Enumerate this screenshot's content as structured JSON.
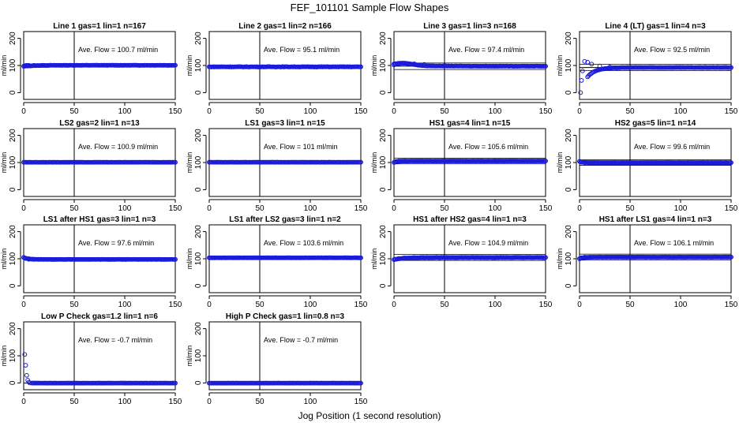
{
  "figure": {
    "title": "FEF_101101  Sample Flow Shapes",
    "xlabel": "Jog Position (1 second resolution)"
  },
  "chart_data": [
    {
      "type": "scatter",
      "title": "Line 1 gas=1 lin=1 n=167",
      "ylabel": "ml/min",
      "annotation": "Ave. Flow =  100.7  ml/min",
      "ave": 100.7,
      "xlim": [
        0,
        150
      ],
      "ylim": [
        -25,
        225
      ],
      "xticks": [
        0,
        50,
        100,
        150
      ],
      "yticks": [
        0,
        100,
        200
      ],
      "xticklabels": [
        "0",
        "50",
        "100",
        "150"
      ],
      "yticklabels": [
        "0",
        "100",
        "200"
      ],
      "vline_x": 50,
      "hlines": [],
      "point_color": "#1a1adc",
      "shape": {
        "start": 97,
        "bump": 0,
        "tau": 10,
        "base": 100.7,
        "noise": 1
      },
      "series": [
        {
          "x": [
            0,
            1,
            2,
            3,
            5,
            10,
            20,
            50,
            100,
            150
          ],
          "y": [
            97,
            99,
            100,
            100.5,
            100.7,
            100.7,
            100.7,
            100.7,
            100.7,
            100.7
          ]
        }
      ]
    },
    {
      "type": "scatter",
      "title": "Line 2 gas=1 lin=2 n=166",
      "ylabel": "ml/min",
      "annotation": "Ave. Flow =  95.1  ml/min",
      "ave": 95.1,
      "xlim": [
        0,
        150
      ],
      "ylim": [
        -25,
        225
      ],
      "xticks": [
        0,
        50,
        100,
        150
      ],
      "yticks": [
        0,
        100,
        200
      ],
      "xticklabels": [
        "0",
        "50",
        "100",
        "150"
      ],
      "yticklabels": [
        "0",
        "100",
        "200"
      ],
      "vline_x": 50,
      "hlines": [],
      "point_color": "#1a1adc",
      "shape": {
        "start": 95,
        "bump": 0,
        "tau": 10,
        "base": 95.1,
        "noise": 1.5
      },
      "series": [
        {
          "x": [
            0,
            5,
            10,
            20,
            50,
            100,
            150
          ],
          "y": [
            95,
            95.1,
            95.1,
            95.1,
            95.1,
            95.1,
            95.1
          ]
        }
      ]
    },
    {
      "type": "scatter",
      "title": "Line 3 gas=1 lin=3 n=168",
      "ylabel": "ml/min",
      "annotation": "Ave. Flow =  97.4  ml/min",
      "ave": 97.4,
      "xlim": [
        0,
        150
      ],
      "ylim": [
        -25,
        225
      ],
      "xticks": [
        0,
        50,
        100,
        150
      ],
      "yticks": [
        0,
        100,
        200
      ],
      "xticklabels": [
        "0",
        "50",
        "100",
        "150"
      ],
      "yticklabels": [
        "0",
        "100",
        "200"
      ],
      "vline_x": 50,
      "hlines": [
        109,
        85
      ],
      "point_color": "#1a1adc",
      "shape": {
        "start": 102,
        "bump": 8,
        "tau": 25,
        "base": 97.4,
        "noise": 1
      },
      "series": [
        {
          "x": [
            0,
            5,
            10,
            20,
            30,
            50,
            100,
            150
          ],
          "y": [
            102,
            106,
            108,
            106,
            104,
            100,
            97.4,
            97.4
          ]
        }
      ]
    },
    {
      "type": "scatter",
      "title": "Line 4 (LT) gas=1 lin=4 n=3",
      "ylabel": "ml/min",
      "annotation": "Ave. Flow =  92.5  ml/min",
      "ave": 92.5,
      "xlim": [
        0,
        150
      ],
      "ylim": [
        -25,
        225
      ],
      "xticks": [
        0,
        50,
        100,
        150
      ],
      "yticks": [
        0,
        100,
        200
      ],
      "xticklabels": [
        "0",
        "50",
        "100",
        "150"
      ],
      "yticklabels": [
        "0",
        "100",
        "200"
      ],
      "vline_x": 50,
      "hlines": [
        104,
        81
      ],
      "point_color": "#1a1adc",
      "shape": {
        "start": 0,
        "bump": 0,
        "tau": 8,
        "base": 92.5,
        "noise": 1
      },
      "series": [
        {
          "x": [
            1,
            2,
            3,
            5,
            8,
            12,
            20,
            30,
            50,
            100,
            150
          ],
          "y": [
            0,
            45,
            80,
            115,
            112,
            105,
            98,
            94,
            92.5,
            92.5,
            92.5
          ]
        }
      ]
    },
    {
      "type": "scatter",
      "title": "LS2 gas=2 lin=1 n=13",
      "ylabel": "ml/min",
      "annotation": "Ave. Flow =  100.9  ml/min",
      "ave": 100.9,
      "xlim": [
        0,
        150
      ],
      "ylim": [
        -25,
        225
      ],
      "xticks": [
        0,
        50,
        100,
        150
      ],
      "yticks": [
        0,
        100,
        200
      ],
      "xticklabels": [
        "0",
        "50",
        "100",
        "150"
      ],
      "yticklabels": [
        "0",
        "100",
        "200"
      ],
      "vline_x": 50,
      "hlines": [],
      "point_color": "#1a1adc",
      "shape": {
        "start": 100.9,
        "bump": 0,
        "tau": 10,
        "base": 100.9,
        "noise": 0.5
      },
      "series": [
        {
          "x": [
            0,
            50,
            100,
            150
          ],
          "y": [
            100.9,
            100.9,
            100.9,
            100.9
          ]
        }
      ]
    },
    {
      "type": "scatter",
      "title": "LS1 gas=3 lin=1 n=15",
      "ylabel": "ml/min",
      "annotation": "Ave. Flow =  101  ml/min",
      "ave": 101,
      "xlim": [
        0,
        150
      ],
      "ylim": [
        -25,
        225
      ],
      "xticks": [
        0,
        50,
        100,
        150
      ],
      "yticks": [
        0,
        100,
        200
      ],
      "xticklabels": [
        "0",
        "50",
        "100",
        "150"
      ],
      "yticklabels": [
        "0",
        "100",
        "200"
      ],
      "vline_x": 50,
      "hlines": [],
      "point_color": "#1a1adc",
      "shape": {
        "start": 101,
        "bump": 0,
        "tau": 10,
        "base": 101,
        "noise": 0.5
      },
      "series": [
        {
          "x": [
            0,
            50,
            100,
            150
          ],
          "y": [
            101,
            101,
            101,
            101
          ]
        }
      ]
    },
    {
      "type": "scatter",
      "title": "HS1 gas=4 lin=1 n=15",
      "ylabel": "ml/min",
      "annotation": "Ave. Flow =  105.6  ml/min",
      "ave": 105.6,
      "xlim": [
        0,
        150
      ],
      "ylim": [
        -25,
        225
      ],
      "xticks": [
        0,
        50,
        100,
        150
      ],
      "yticks": [
        0,
        100,
        200
      ],
      "xticklabels": [
        "0",
        "50",
        "100",
        "150"
      ],
      "yticklabels": [
        "0",
        "100",
        "200"
      ],
      "vline_x": 50,
      "hlines": [
        116,
        95
      ],
      "point_color": "#1a1adc",
      "shape": {
        "start": 100,
        "bump": 0,
        "tau": 3,
        "base": 105.6,
        "noise": 0.6
      },
      "series": [
        {
          "x": [
            0,
            2,
            5,
            10,
            50,
            100,
            150
          ],
          "y": [
            100,
            104,
            105.6,
            105.6,
            105.6,
            105.6,
            105.6
          ]
        }
      ]
    },
    {
      "type": "scatter",
      "title": "HS2 gas=5 lin=1 n=14",
      "ylabel": "ml/min",
      "annotation": "Ave. Flow =  99.6  ml/min",
      "ave": 99.6,
      "xlim": [
        0,
        150
      ],
      "ylim": [
        -25,
        225
      ],
      "xticks": [
        0,
        50,
        100,
        150
      ],
      "yticks": [
        0,
        100,
        200
      ],
      "xticklabels": [
        "0",
        "50",
        "100",
        "150"
      ],
      "yticklabels": [
        "0",
        "100",
        "200"
      ],
      "vline_x": 50,
      "hlines": [
        109.6,
        89.6
      ],
      "point_color": "#1a1adc",
      "shape": {
        "start": 104,
        "bump": 0,
        "tau": 3,
        "base": 99.6,
        "noise": 0.6
      },
      "series": [
        {
          "x": [
            0,
            2,
            5,
            10,
            50,
            100,
            150
          ],
          "y": [
            104,
            101,
            99.6,
            99.6,
            99.6,
            99.6,
            99.6
          ]
        }
      ]
    },
    {
      "type": "scatter",
      "title": "LS1 after HS1 gas=3 lin=1 n=3",
      "ylabel": "ml/min",
      "annotation": "Ave. Flow =  97.6  ml/min",
      "ave": 97.6,
      "xlim": [
        0,
        150
      ],
      "ylim": [
        -25,
        225
      ],
      "xticks": [
        0,
        50,
        100,
        150
      ],
      "yticks": [
        0,
        100,
        200
      ],
      "xticklabels": [
        "0",
        "50",
        "100",
        "150"
      ],
      "yticklabels": [
        "0",
        "100",
        "200"
      ],
      "vline_x": 50,
      "hlines": [],
      "point_color": "#1a1adc",
      "shape": {
        "start": 105,
        "bump": 0,
        "tau": 4,
        "base": 97.6,
        "noise": 0.6
      },
      "series": [
        {
          "x": [
            0,
            2,
            5,
            10,
            50,
            100,
            150
          ],
          "y": [
            105,
            101,
            98,
            97.6,
            97.6,
            97.6,
            97.6
          ]
        }
      ]
    },
    {
      "type": "scatter",
      "title": "LS1 after LS2 gas=3 lin=1 n=2",
      "ylabel": "ml/min",
      "annotation": "Ave. Flow =  103.6  ml/min",
      "ave": 103.6,
      "xlim": [
        0,
        150
      ],
      "ylim": [
        -25,
        225
      ],
      "xticks": [
        0,
        50,
        100,
        150
      ],
      "yticks": [
        0,
        100,
        200
      ],
      "xticklabels": [
        "0",
        "50",
        "100",
        "150"
      ],
      "yticklabels": [
        "0",
        "100",
        "200"
      ],
      "vline_x": 50,
      "hlines": [],
      "point_color": "#1a1adc",
      "shape": {
        "start": 103.6,
        "bump": 0,
        "tau": 10,
        "base": 103.6,
        "noise": 0.5
      },
      "series": [
        {
          "x": [
            0,
            50,
            100,
            150
          ],
          "y": [
            103.6,
            103.6,
            103.6,
            103.6
          ]
        }
      ]
    },
    {
      "type": "scatter",
      "title": "HS1 after HS2 gas=4 lin=1 n=3",
      "ylabel": "ml/min",
      "annotation": "Ave. Flow =  104.9  ml/min",
      "ave": 104.9,
      "xlim": [
        0,
        150
      ],
      "ylim": [
        -25,
        225
      ],
      "xticks": [
        0,
        50,
        100,
        150
      ],
      "yticks": [
        0,
        100,
        200
      ],
      "xticklabels": [
        "0",
        "50",
        "100",
        "150"
      ],
      "yticklabels": [
        "0",
        "100",
        "200"
      ],
      "vline_x": 50,
      "hlines": [
        116,
        94
      ],
      "point_color": "#1a1adc",
      "shape": {
        "start": 97,
        "bump": 0,
        "tau": 10,
        "base": 104.9,
        "noise": 1.2
      },
      "series": [
        {
          "x": [
            0,
            5,
            10,
            20,
            50,
            100,
            150
          ],
          "y": [
            97,
            101,
            103,
            104.5,
            104.9,
            104.9,
            104.9
          ]
        }
      ]
    },
    {
      "type": "scatter",
      "title": "HS1 after LS1 gas=4 lin=1 n=3",
      "ylabel": "ml/min",
      "annotation": "Ave. Flow =  106.1  ml/min",
      "ave": 106.1,
      "xlim": [
        0,
        150
      ],
      "ylim": [
        -25,
        225
      ],
      "xticks": [
        0,
        50,
        100,
        150
      ],
      "yticks": [
        0,
        100,
        200
      ],
      "xticklabels": [
        "0",
        "50",
        "100",
        "150"
      ],
      "yticklabels": [
        "0",
        "100",
        "200"
      ],
      "vline_x": 50,
      "hlines": [
        117,
        95
      ],
      "point_color": "#1a1adc",
      "shape": {
        "start": 100,
        "bump": 0,
        "tau": 4,
        "base": 106.1,
        "noise": 0.6
      },
      "series": [
        {
          "x": [
            0,
            2,
            5,
            10,
            50,
            100,
            150
          ],
          "y": [
            100,
            104,
            106,
            106.1,
            106.1,
            106.1,
            106.1
          ]
        }
      ]
    },
    {
      "type": "scatter",
      "title": "Low P Check gas=1.2 lin=1 n=6",
      "ylabel": "ml/min",
      "annotation": "Ave. Flow =  -0.7  ml/min",
      "ave": -0.7,
      "xlim": [
        0,
        150
      ],
      "ylim": [
        -25,
        225
      ],
      "xticks": [
        0,
        50,
        100,
        150
      ],
      "yticks": [
        0,
        100,
        200
      ],
      "xticklabels": [
        "0",
        "50",
        "100",
        "150"
      ],
      "yticklabels": [
        "0",
        "100",
        "200"
      ],
      "vline_x": 50,
      "hlines": [],
      "point_color": "#1a1adc",
      "shape": {
        "start": 0,
        "bump": 0,
        "tau": 10,
        "base": -0.7,
        "noise": 0.5
      },
      "series": [
        {
          "x": [
            1,
            2,
            3,
            4,
            5,
            6,
            10,
            50,
            100,
            150
          ],
          "y": [
            105,
            65,
            28,
            10,
            3,
            0,
            -0.7,
            -0.7,
            -0.7,
            -0.7
          ]
        }
      ]
    },
    {
      "type": "scatter",
      "title": "High P Check gas=1 lin=0.8 n=3",
      "ylabel": "ml/min",
      "annotation": "Ave. Flow =  -0.7  ml/min",
      "ave": -0.7,
      "xlim": [
        0,
        150
      ],
      "ylim": [
        -25,
        225
      ],
      "xticks": [
        0,
        50,
        100,
        150
      ],
      "yticks": [
        0,
        100,
        200
      ],
      "xticklabels": [
        "0",
        "50",
        "100",
        "150"
      ],
      "yticklabels": [
        "0",
        "100",
        "200"
      ],
      "vline_x": 50,
      "hlines": [],
      "point_color": "#1a1adc",
      "shape": {
        "start": -0.7,
        "bump": 0,
        "tau": 10,
        "base": -0.7,
        "noise": 0.4
      },
      "series": [
        {
          "x": [
            0,
            50,
            100,
            150
          ],
          "y": [
            -0.7,
            -0.7,
            -0.7,
            -0.7
          ]
        }
      ]
    }
  ]
}
